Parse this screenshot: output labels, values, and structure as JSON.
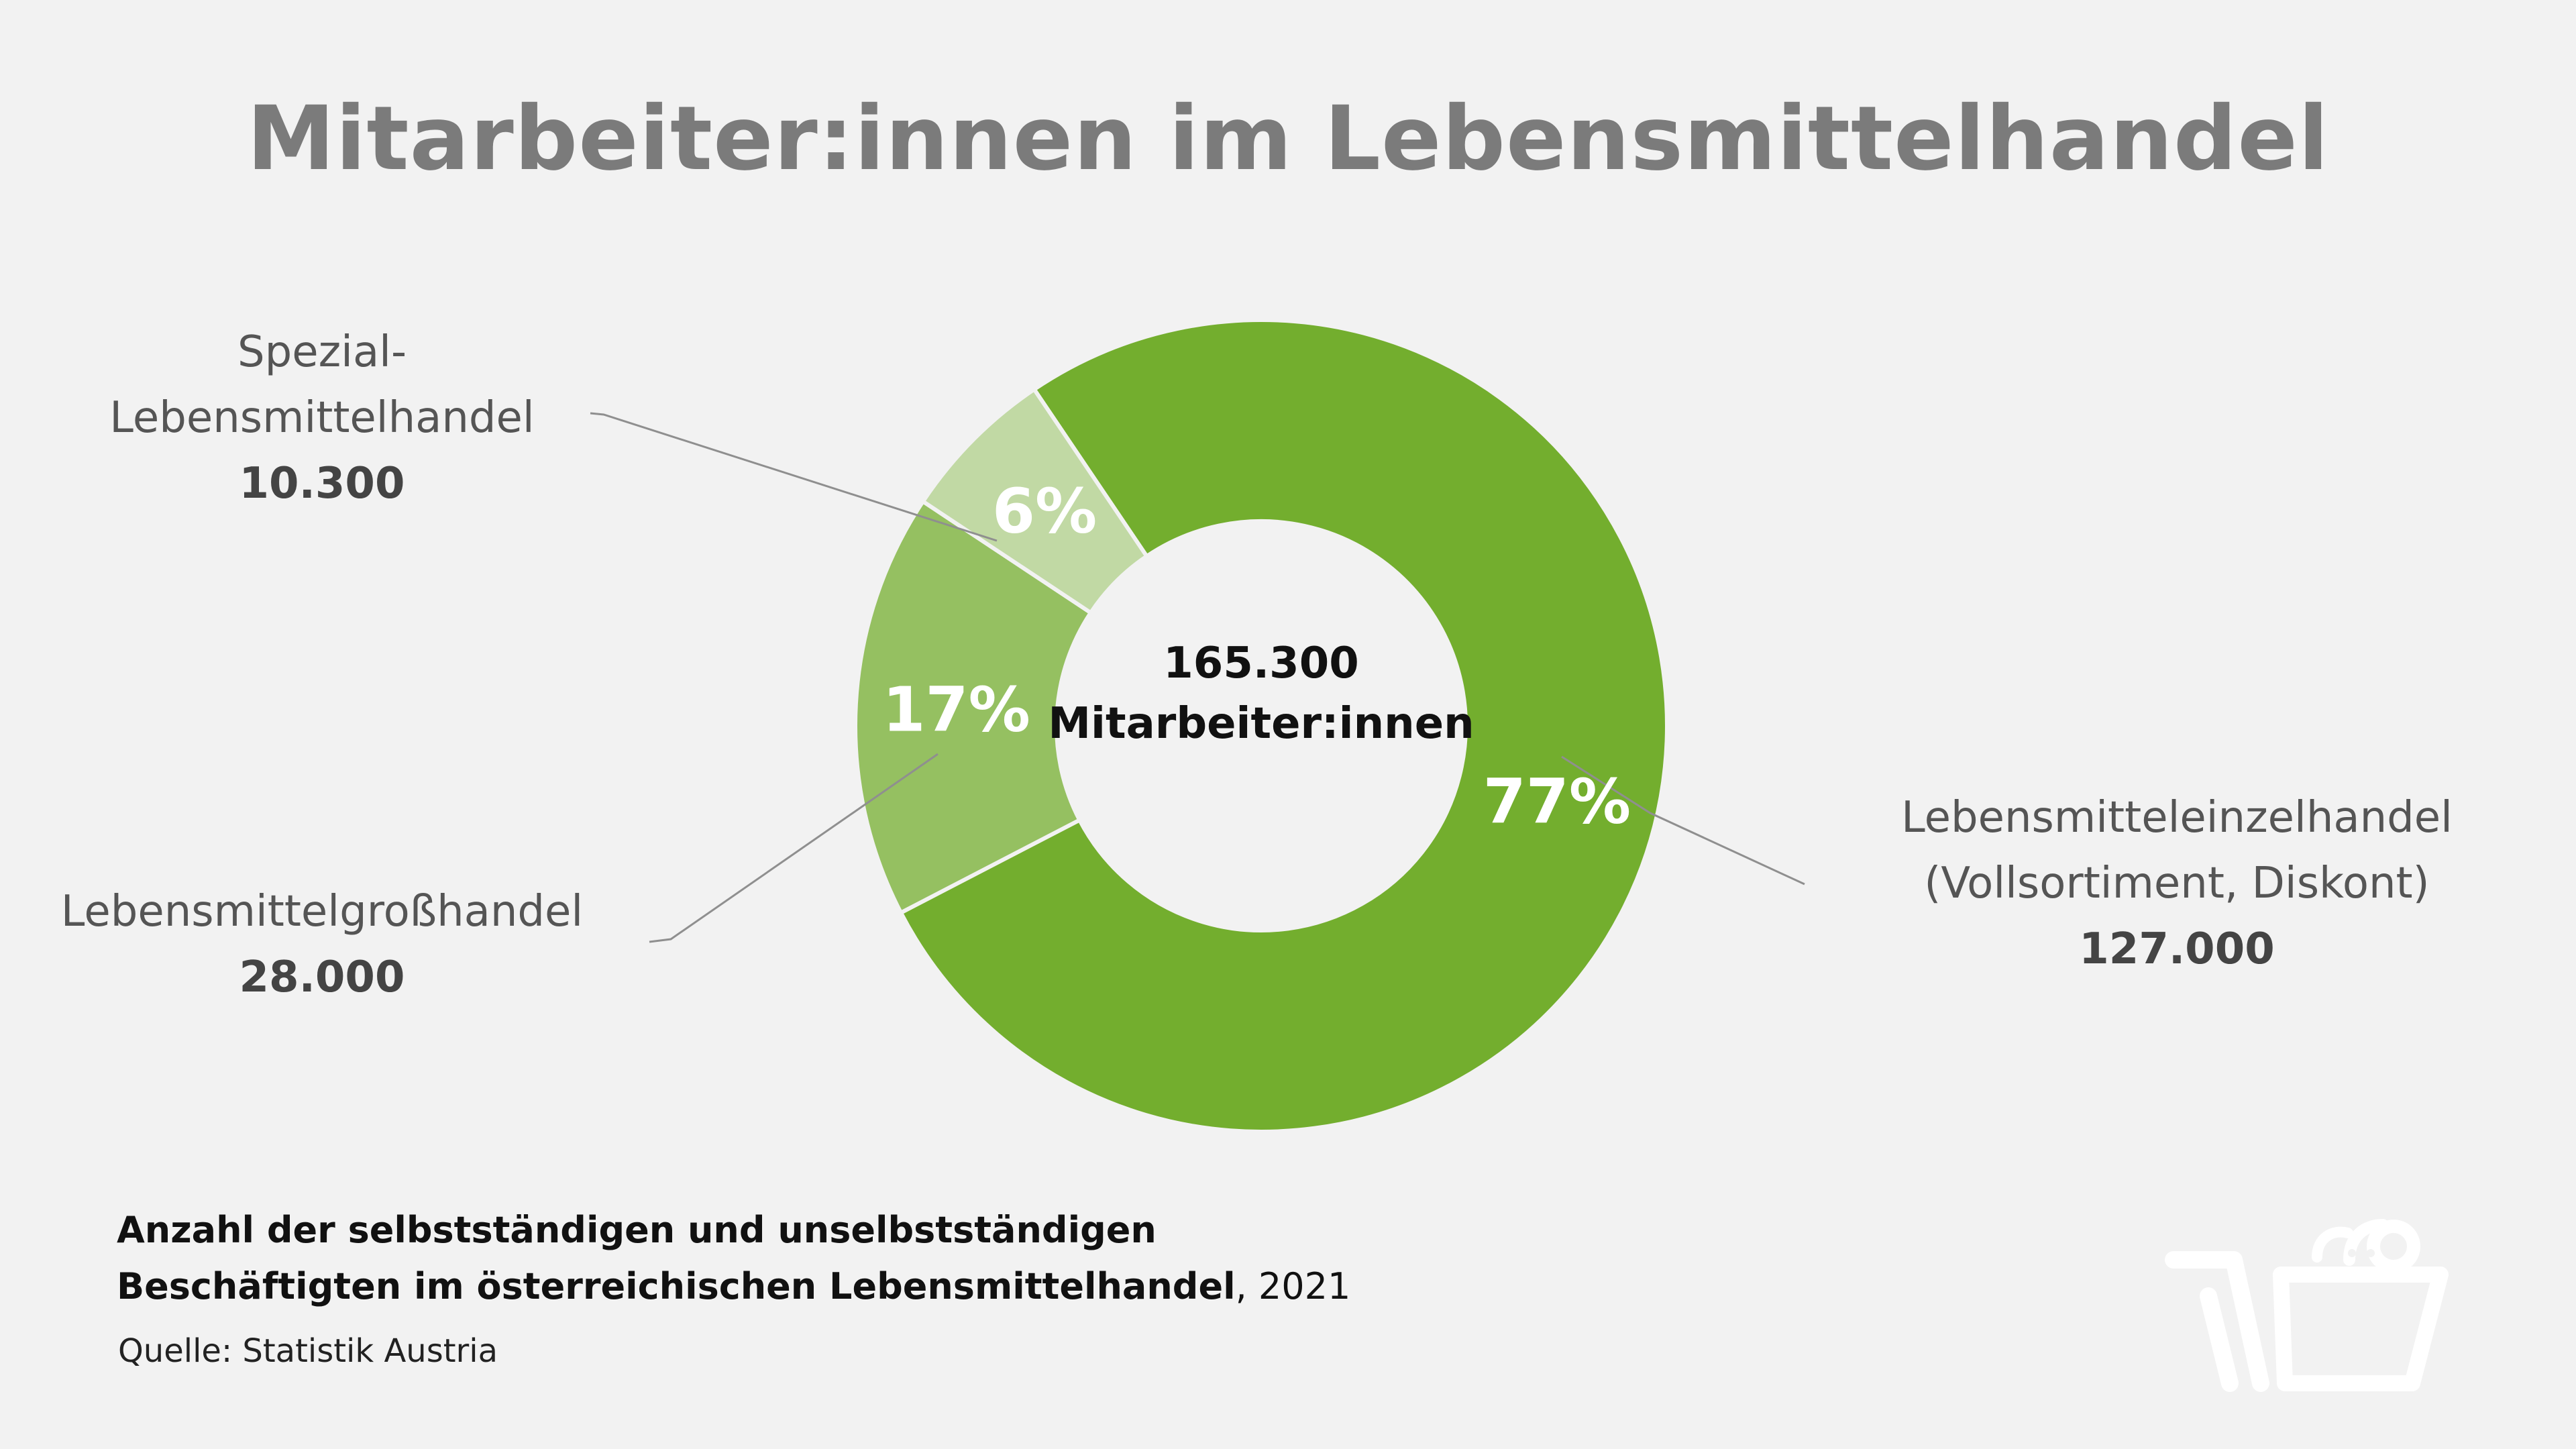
{
  "title": "Mitarbeiter:innen im Lebensmittelhandel",
  "chart_data": {
    "type": "pie",
    "donut": true,
    "center_label": [
      "165.300",
      "Mitarbeiter:innen"
    ],
    "slices": [
      {
        "label": "Lebensmitteleinzelhandel (Vollsortiment, Diskont)",
        "value": 127000,
        "value_label": "127.000",
        "percent": 77,
        "percent_label": "77%",
        "color": "#73ae2e"
      },
      {
        "label": "Lebensmittelgroßhandel",
        "value": 28000,
        "value_label": "28.000",
        "percent": 17,
        "percent_label": "17%",
        "color": "#95c061"
      },
      {
        "label": "Spezial-Lebensmittelhandel",
        "value": 10300,
        "value_label": "10.300",
        "percent": 6,
        "percent_label": "6%",
        "color": "#c1d9a4"
      }
    ],
    "legend": "none"
  },
  "callouts": {
    "einzel": {
      "lines": [
        "Lebensmitteleinzelhandel",
        "(Vollsortiment, Diskont)"
      ],
      "value": "127.000"
    },
    "gross": {
      "lines": [
        "Lebensmittelgroßhandel"
      ],
      "value": "28.000"
    },
    "spezial": {
      "lines": [
        "Spezial-",
        "Lebensmittelhandel"
      ],
      "value": "10.300"
    }
  },
  "footer": {
    "bold_text_1": "Anzahl der selbstständigen und unselbstständigen",
    "bold_text_2": "Beschäftigten im österreichischen Lebensmittelhandel",
    "suffix": ", 2021",
    "source": "Quelle: Statistik Austria"
  },
  "logo": {
    "icon": "shopping-basket-logo-icon",
    "color": "#ffffff"
  }
}
